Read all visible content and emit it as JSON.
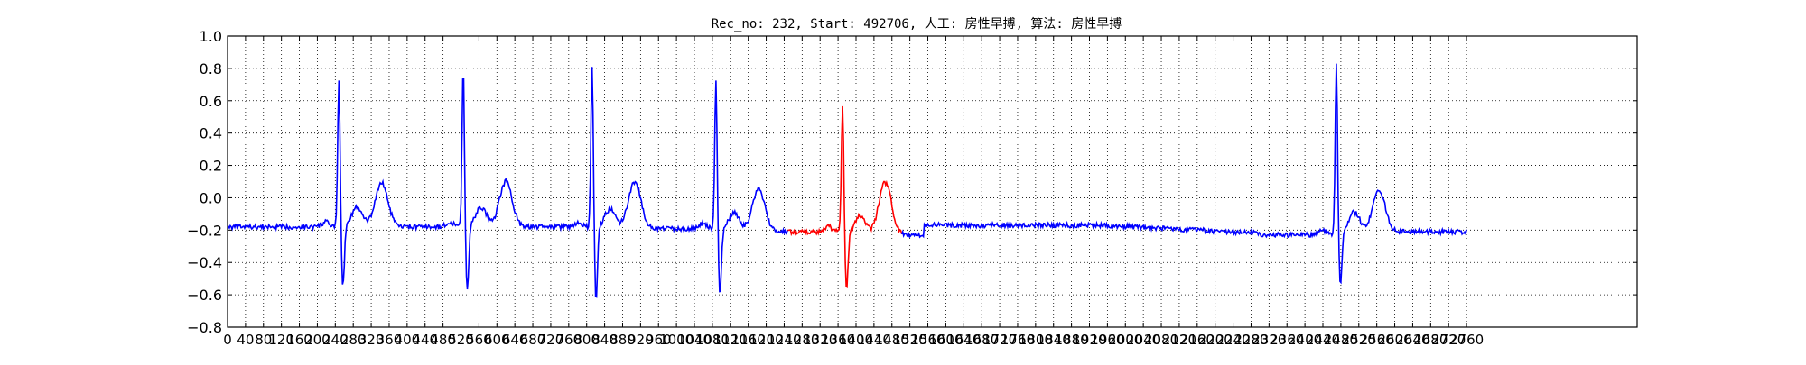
{
  "chart_data": {
    "type": "line",
    "title": "Rec_no: 232, Start: 492706, 人工: 房性早搏, 算法: 房性早搏",
    "xlabel": "",
    "ylabel": "",
    "xlim": [
      0,
      3140
    ],
    "ylim": [
      -0.8,
      1.0
    ],
    "grid": true,
    "grid_style": "dotted",
    "yticks": [
      -0.8,
      -0.6,
      -0.4,
      -0.2,
      0.0,
      0.2,
      0.4,
      0.6,
      0.8,
      1.0
    ],
    "ytick_labels": [
      "−0.8",
      "−0.6",
      "−0.4",
      "−0.2",
      "0.0",
      "0.2",
      "0.4",
      "0.6",
      "0.8",
      "1.0"
    ],
    "xtick_step": 40,
    "xtick_max": 2760,
    "colors": {
      "normal": "#0000ff",
      "highlight": "#ff0000",
      "grid": "#000000"
    },
    "highlight_range": [
      1248,
      1502
    ],
    "beats": [
      {
        "r": 248,
        "pw": 95,
        "peak": 0.74,
        "trough": -0.55,
        "t_peak": 0.14,
        "base": -0.18,
        "c": "#0000ff"
      },
      {
        "r": 525,
        "pw": 95,
        "peak": 0.81,
        "trough": -0.57,
        "t_peak": 0.15,
        "base": -0.18,
        "c": "#0000ff"
      },
      {
        "r": 812,
        "pw": 95,
        "peak": 0.82,
        "trough": -0.63,
        "t_peak": 0.15,
        "base": -0.19,
        "c": "#0000ff"
      },
      {
        "r": 1088,
        "pw": 95,
        "peak": 0.72,
        "trough": -0.61,
        "t_peak": 0.1,
        "base": -0.21,
        "c": "#0000ff"
      },
      {
        "r": 1370,
        "pw": 95,
        "peak": 0.57,
        "trough": -0.58,
        "t_peak": 0.15,
        "base": -0.23,
        "c": "#ff0000"
      },
      {
        "r": 2470,
        "pw": 95,
        "peak": 0.83,
        "trough": -0.55,
        "t_peak": 0.09,
        "base": -0.21,
        "c": "#0000ff"
      }
    ],
    "signal_start": 0,
    "signal_end": 2760
  }
}
